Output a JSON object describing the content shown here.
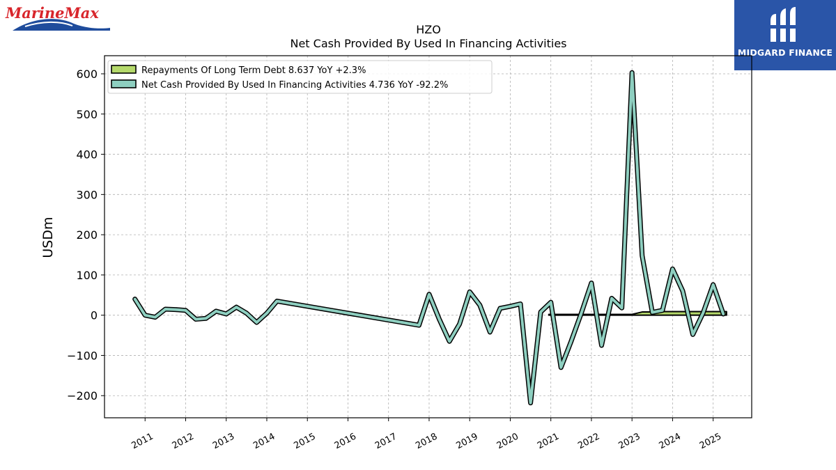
{
  "header": {
    "left_logo_text": "MarineMax",
    "right_logo_text": "MIDGARD FINANCE"
  },
  "chart_data": {
    "type": "line",
    "title": "HZO",
    "subtitle": "Net Cash Provided By Used In Financing Activities",
    "xlabel": "",
    "ylabel": "USDm",
    "xlim": [
      2010.0,
      2025.95
    ],
    "ylim": [
      -255,
      645
    ],
    "y_ticks": [
      -200,
      -100,
      0,
      100,
      200,
      300,
      400,
      500,
      600
    ],
    "y_tick_labels": [
      "−200",
      "−100",
      "0",
      "100",
      "200",
      "300",
      "400",
      "500",
      "600"
    ],
    "x_ticks": [
      2011,
      2012,
      2013,
      2014,
      2015,
      2016,
      2017,
      2018,
      2019,
      2020,
      2021,
      2022,
      2023,
      2024,
      2025
    ],
    "x_tick_labels": [
      "2011",
      "2012",
      "2013",
      "2014",
      "2015",
      "2016",
      "2017",
      "2018",
      "2019",
      "2020",
      "2021",
      "2022",
      "2023",
      "2024",
      "2025"
    ],
    "grid": true,
    "legend_position": "top-left",
    "series": [
      {
        "name": "Repayments Of Long Term Debt",
        "legend_label": "Repayments Of Long Term Debt  8.637 YoY +2.3%",
        "color": "#b5d96b",
        "style": "filled-band",
        "x": [
          2020.95,
          2021.25,
          2021.5,
          2021.75,
          2022.0,
          2022.25,
          2022.5,
          2022.75,
          2023.0,
          2023.25,
          2023.5,
          2023.75,
          2024.0,
          2024.25,
          2024.5,
          2024.75,
          2025.0,
          2025.25,
          2025.33
        ],
        "values": [
          2,
          2,
          2,
          2,
          2,
          2,
          2,
          2,
          2,
          8,
          8,
          9,
          9,
          9,
          9,
          9,
          9,
          9,
          9
        ]
      },
      {
        "name": "Net Cash Provided By Used In Financing Activities",
        "legend_label": "Net Cash Provided By Used In Financing Activities  4.736 YoY -92.2%",
        "color": "#8ecfc0",
        "style": "line",
        "x": [
          2010.75,
          2011.0,
          2011.25,
          2011.5,
          2011.75,
          2012.0,
          2012.25,
          2012.5,
          2012.75,
          2013.0,
          2013.25,
          2013.5,
          2013.75,
          2014.0,
          2014.25,
          2017.75,
          2018.0,
          2018.25,
          2018.5,
          2018.75,
          2019.0,
          2019.25,
          2019.5,
          2019.75,
          2020.0,
          2020.25,
          2020.5,
          2020.75,
          2021.0,
          2021.25,
          2021.5,
          2021.75,
          2022.0,
          2022.25,
          2022.5,
          2022.75,
          2023.0,
          2023.25,
          2023.5,
          2023.75,
          2024.0,
          2024.25,
          2024.5,
          2024.75,
          2025.0,
          2025.25
        ],
        "values": [
          40,
          0,
          -5,
          15,
          14,
          12,
          -10,
          -8,
          10,
          3,
          20,
          5,
          -18,
          5,
          35,
          -25,
          52,
          -10,
          -65,
          -22,
          58,
          25,
          -42,
          17,
          22,
          28,
          -218,
          8,
          32,
          -130,
          -65,
          5,
          80,
          -75,
          42,
          18,
          603,
          148,
          7,
          12,
          115,
          60,
          -48,
          5,
          76,
          3
        ]
      }
    ]
  }
}
